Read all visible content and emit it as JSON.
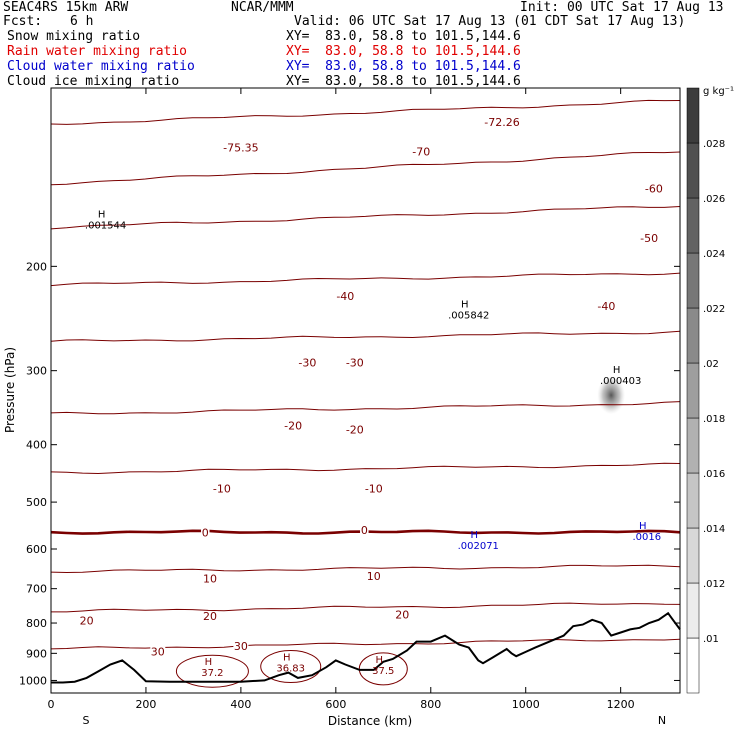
{
  "header": {
    "model": "SEAC4RS 15km ARW",
    "center": "NCAR/MMM",
    "init": "Init: 00 UTC Sat 17 Aug 13",
    "fcst_label": "Fcst:",
    "fcst_value": "6 h",
    "valid": "Valid: 06 UTC Sat 17 Aug 13 (01 CDT Sat 17 Aug 13)"
  },
  "fields": [
    {
      "name": "Snow mixing ratio",
      "xy": "XY=  83.0, 58.8 to 101.5,144.6",
      "color": "#000000"
    },
    {
      "name": "Rain water mixing ratio",
      "xy": "XY=  83.0, 58.8 to 101.5,144.6",
      "color": "#e00000"
    },
    {
      "name": "Cloud water mixing ratio",
      "xy": "XY=  83.0, 58.8 to 101.5,144.6",
      "color": "#0000cc"
    },
    {
      "name": "Cloud ice mixing ratio",
      "xy": "XY=  83.0, 58.8 to 101.5,144.6",
      "color": "#000000"
    }
  ],
  "colors": {
    "temperature_contour": "#7a0000",
    "freezing_level": "#7a0000",
    "cloud_water_label": "#0000cc",
    "terrain": "#000000"
  },
  "chart_data": {
    "type": "line",
    "xlabel": "Distance (km)",
    "ylabel": "Pressure (hPa)",
    "xlim": [
      0,
      1325
    ],
    "ylim": [
      1050,
      100
    ],
    "x_ticks": [
      0,
      200,
      400,
      600,
      800,
      1000,
      1200
    ],
    "y_ticks": [
      200,
      300,
      400,
      500,
      600,
      700,
      800,
      900,
      1000
    ],
    "y_scale": "log",
    "x_end_labels": {
      "left": "S",
      "right": "N"
    },
    "temperature_contours_C": [
      {
        "value": -70,
        "p_left": 115,
        "p_right": 105
      },
      {
        "value": -60,
        "p_left": 145,
        "p_right": 128
      },
      {
        "value": -50,
        "p_left": 172,
        "p_right": 158
      },
      {
        "value": -40,
        "p_left": 215,
        "p_right": 205
      },
      {
        "value": -30,
        "p_left": 268,
        "p_right": 258
      },
      {
        "value": -20,
        "p_left": 355,
        "p_right": 340
      },
      {
        "value": -10,
        "p_left": 446,
        "p_right": 432
      },
      {
        "value": 0,
        "p_left": 562,
        "p_right": 562
      },
      {
        "value": 10,
        "p_left": 655,
        "p_right": 640
      },
      {
        "value": 20,
        "p_left": 765,
        "p_right": 740
      },
      {
        "value": 30,
        "p_left": 885,
        "p_right": 850
      }
    ],
    "contour_labels": [
      {
        "text": "-75.35",
        "x": 400,
        "p": 128
      },
      {
        "text": "-70",
        "x": 780,
        "p": 130
      },
      {
        "text": "-72.26",
        "x": 950,
        "p": 116
      },
      {
        "text": "-60",
        "x": 1270,
        "p": 150
      },
      {
        "text": "-50",
        "x": 1260,
        "p": 182
      },
      {
        "text": "-40",
        "x": 620,
        "p": 228
      },
      {
        "text": "-40",
        "x": 1170,
        "p": 237
      },
      {
        "text": "-30",
        "x": 540,
        "p": 295
      },
      {
        "text": "-30",
        "x": 640,
        "p": 295
      },
      {
        "text": "-20",
        "x": 510,
        "p": 377
      },
      {
        "text": "-20",
        "x": 640,
        "p": 383
      },
      {
        "text": "-10",
        "x": 360,
        "p": 482
      },
      {
        "text": "-10",
        "x": 680,
        "p": 482
      },
      {
        "text": "0",
        "x": 325,
        "p": 571
      },
      {
        "text": "0",
        "x": 660,
        "p": 566
      },
      {
        "text": "10",
        "x": 335,
        "p": 683
      },
      {
        "text": "10",
        "x": 680,
        "p": 677
      },
      {
        "text": "20",
        "x": 75,
        "p": 804
      },
      {
        "text": "20",
        "x": 335,
        "p": 791
      },
      {
        "text": "20",
        "x": 740,
        "p": 786
      },
      {
        "text": "30",
        "x": 225,
        "p": 908
      },
      {
        "text": "30",
        "x": 400,
        "p": 888
      }
    ],
    "extremes": [
      {
        "mark": "H",
        "value": ".001544",
        "x": 115,
        "p": 172,
        "field": "Snow mixing ratio"
      },
      {
        "mark": "H",
        "value": ".005842",
        "x": 880,
        "p": 244,
        "field": "Snow mixing ratio"
      },
      {
        "mark": "H",
        "value": ".000403",
        "x": 1200,
        "p": 315,
        "field": "Cloud ice mixing ratio"
      },
      {
        "mark": "H",
        "value": ".002071",
        "x": 900,
        "p": 598,
        "field": "Cloud water mixing ratio"
      },
      {
        "mark": "H",
        "value": ".0016",
        "x": 1255,
        "p": 577,
        "field": "Cloud water mixing ratio"
      },
      {
        "mark": "H",
        "value": "37.2",
        "x": 340,
        "p": 980,
        "field": "Temperature"
      },
      {
        "mark": "H",
        "value": "36.83",
        "x": 505,
        "p": 962,
        "field": "Temperature"
      },
      {
        "mark": "H",
        "value": "37.5",
        "x": 700,
        "p": 971,
        "field": "Temperature"
      }
    ],
    "cloud_ice_max": {
      "x": 1180,
      "p": 330
    },
    "terrain": {
      "x": [
        0,
        25,
        50,
        75,
        100,
        125,
        150,
        175,
        200,
        250,
        300,
        350,
        400,
        450,
        480,
        500,
        520,
        550,
        580,
        600,
        620,
        650,
        680,
        700,
        720,
        750,
        770,
        800,
        830,
        860,
        880,
        900,
        910,
        930,
        960,
        970,
        980,
        1000,
        1020,
        1050,
        1080,
        1100,
        1120,
        1140,
        1160,
        1180,
        1200,
        1220,
        1240,
        1260,
        1280,
        1300,
        1310,
        1325
      ],
      "p": [
        1008,
        1008,
        1005,
        990,
        965,
        940,
        925,
        960,
        1003,
        1005,
        1005,
        1005,
        1005,
        1000,
        980,
        970,
        990,
        980,
        950,
        925,
        940,
        960,
        960,
        930,
        920,
        890,
        860,
        860,
        840,
        870,
        880,
        925,
        935,
        915,
        885,
        900,
        910,
        895,
        880,
        860,
        840,
        810,
        805,
        790,
        800,
        840,
        830,
        820,
        815,
        800,
        790,
        770,
        790,
        820
      ]
    },
    "colorbar": {
      "unit": "g kg⁻¹",
      "ticks": [
        ".01",
        ".012",
        ".014",
        ".016",
        ".018",
        ".02",
        ".022",
        ".024",
        ".026",
        ".028"
      ]
    }
  }
}
